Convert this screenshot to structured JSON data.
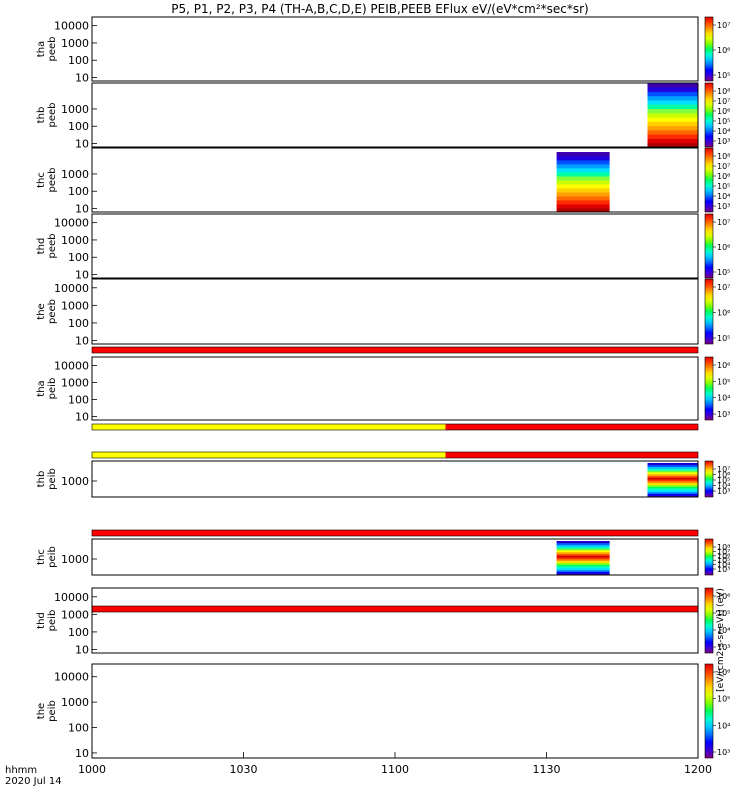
{
  "title": "P5, P1, P2, P3, P4 (TH-A,B,C,D,E) PEIB,PEEB EFlux eV/(eV*cm²*sec*sr)",
  "colorbar_unit_label": "[eV/(cm2-s-sr-eV)] (eV)",
  "colorbar_colors": [
    "#7f007f",
    "#3b00d9",
    "#0000ff",
    "#0070ff",
    "#00c8ff",
    "#00ffcc",
    "#00ff5a",
    "#7fff00",
    "#e0ff00",
    "#ffd800",
    "#ff8a00",
    "#ff3c00",
    "#e00000"
  ],
  "bottom_axis": {
    "unit_label": "hhmm",
    "date_label": "2020 Jul 14",
    "ticks": [
      "1000",
      "1030",
      "1100",
      "1130",
      "1200"
    ],
    "range_minutes": [
      600,
      720
    ]
  },
  "chart_data": [
    {
      "type": "heatmap",
      "probe": "tha",
      "species": "peeb",
      "ylabel": [
        "tha",
        "peeb"
      ],
      "yticks": [
        "10",
        "100",
        "1000",
        "10000"
      ],
      "colorbar_ticks": [
        "10⁷",
        "10⁶",
        "10⁵"
      ],
      "data_intervals": [],
      "mode_bar": []
    },
    {
      "type": "heatmap",
      "probe": "thb",
      "species": "peeb",
      "ylabel": [
        "thb",
        "peeb"
      ],
      "yticks": [
        "10",
        "100",
        "1000"
      ],
      "colorbar_ticks": [
        "10⁸",
        "10⁷",
        "10⁶",
        "10⁵",
        "10⁴",
        "10³"
      ],
      "data_intervals": [
        [
          710.0,
          720.0
        ]
      ],
      "mode_bar": []
    },
    {
      "type": "heatmap",
      "probe": "thc",
      "species": "peeb",
      "ylabel": [
        "thc",
        "peeb"
      ],
      "yticks": [
        "10",
        "100",
        "1000"
      ],
      "colorbar_ticks": [
        "10⁸",
        "10⁷",
        "10⁶",
        "10⁵",
        "10⁴",
        "10³"
      ],
      "data_intervals": [
        [
          692.0,
          702.5
        ]
      ],
      "mode_bar": []
    },
    {
      "type": "heatmap",
      "probe": "thd",
      "species": "peeb",
      "ylabel": [
        "thd",
        "peeb"
      ],
      "yticks": [
        "10",
        "100",
        "1000",
        "10000"
      ],
      "colorbar_ticks": [
        "10⁷",
        "10⁶",
        "10⁵"
      ],
      "data_intervals": [],
      "mode_bar": []
    },
    {
      "type": "heatmap",
      "probe": "the",
      "species": "peeb",
      "ylabel": [
        "the",
        "peeb"
      ],
      "yticks": [
        "10",
        "100",
        "1000",
        "10000"
      ],
      "colorbar_ticks": [
        "10⁷",
        "10⁶",
        "10⁵"
      ],
      "data_intervals": [],
      "mode_bar": [
        {
          "from": 600,
          "to": 720,
          "color": "#ff0000"
        }
      ]
    },
    {
      "type": "heatmap",
      "probe": "tha",
      "species": "peib",
      "ylabel": [
        "tha",
        "peib"
      ],
      "yticks": [
        "10",
        "100",
        "1000",
        "10000"
      ],
      "colorbar_ticks": [
        "10⁶",
        "10⁵",
        "10⁴",
        "10³"
      ],
      "data_intervals": [],
      "mode_bar": [
        {
          "from": 600,
          "to": 670,
          "color": "#ffff00"
        },
        {
          "from": 670,
          "to": 720,
          "color": "#ff0000"
        }
      ]
    },
    {
      "type": "heatmap",
      "probe": "thb",
      "species": "peib",
      "ylabel": [
        "thb",
        "peib"
      ],
      "yticks": [
        "1000"
      ],
      "colorbar_ticks": [
        "10⁷",
        "10⁶",
        "10⁵",
        "10⁴",
        "10³"
      ],
      "data_intervals": [
        [
          710.0,
          720.0
        ]
      ],
      "mode_bar": [
        {
          "from": 600,
          "to": 670,
          "color": "#ffff00"
        },
        {
          "from": 670,
          "to": 720,
          "color": "#ff0000"
        }
      ]
    },
    {
      "type": "heatmap",
      "probe": "thc",
      "species": "peib",
      "ylabel": [
        "thc",
        "peib"
      ],
      "yticks": [
        "1000"
      ],
      "colorbar_ticks": [
        "10⁸",
        "10⁷",
        "10⁶",
        "10⁵",
        "10⁴",
        "10³"
      ],
      "data_intervals": [
        [
          692.0,
          702.5
        ]
      ],
      "mode_bar": [
        {
          "from": 600,
          "to": 720,
          "color": "#ff0000"
        }
      ]
    },
    {
      "type": "heatmap",
      "probe": "thd",
      "species": "peib",
      "ylabel": [
        "thd",
        "peib"
      ],
      "yticks": [
        "10",
        "100",
        "1000",
        "10000"
      ],
      "colorbar_ticks": [
        "10⁶",
        "10⁵",
        "10⁴",
        "10³"
      ],
      "data_intervals": [],
      "mode_bar": [
        {
          "from": 600,
          "to": 720,
          "color": "#ff0000"
        }
      ]
    },
    {
      "type": "heatmap",
      "probe": "the",
      "species": "peib",
      "ylabel": [
        "the",
        "peib"
      ],
      "yticks": [
        "10",
        "100",
        "1000",
        "10000"
      ],
      "colorbar_ticks": [
        "10⁶",
        "10⁵",
        "10⁴",
        "10³"
      ],
      "data_intervals": [],
      "mode_bar": []
    }
  ]
}
